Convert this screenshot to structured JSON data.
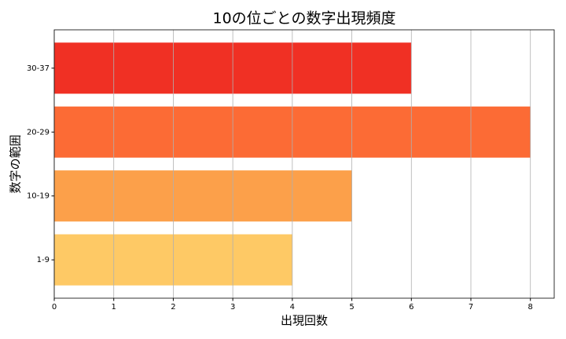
{
  "chart_data": {
    "type": "barh",
    "title": "10の位ごとの数字出現頻度",
    "x_label": "出現回数",
    "y_label": "数字の範囲",
    "categories": [
      "1-9",
      "10-19",
      "20-29",
      "30-37"
    ],
    "values": [
      4,
      5,
      8,
      6
    ],
    "colors": [
      "#fec965",
      "#fca04a",
      "#fc6b35",
      "#f03024"
    ],
    "xlim": [
      0,
      8.4
    ],
    "xticks": [
      0,
      1,
      2,
      3,
      4,
      5,
      6,
      7,
      8
    ],
    "grid": true
  }
}
